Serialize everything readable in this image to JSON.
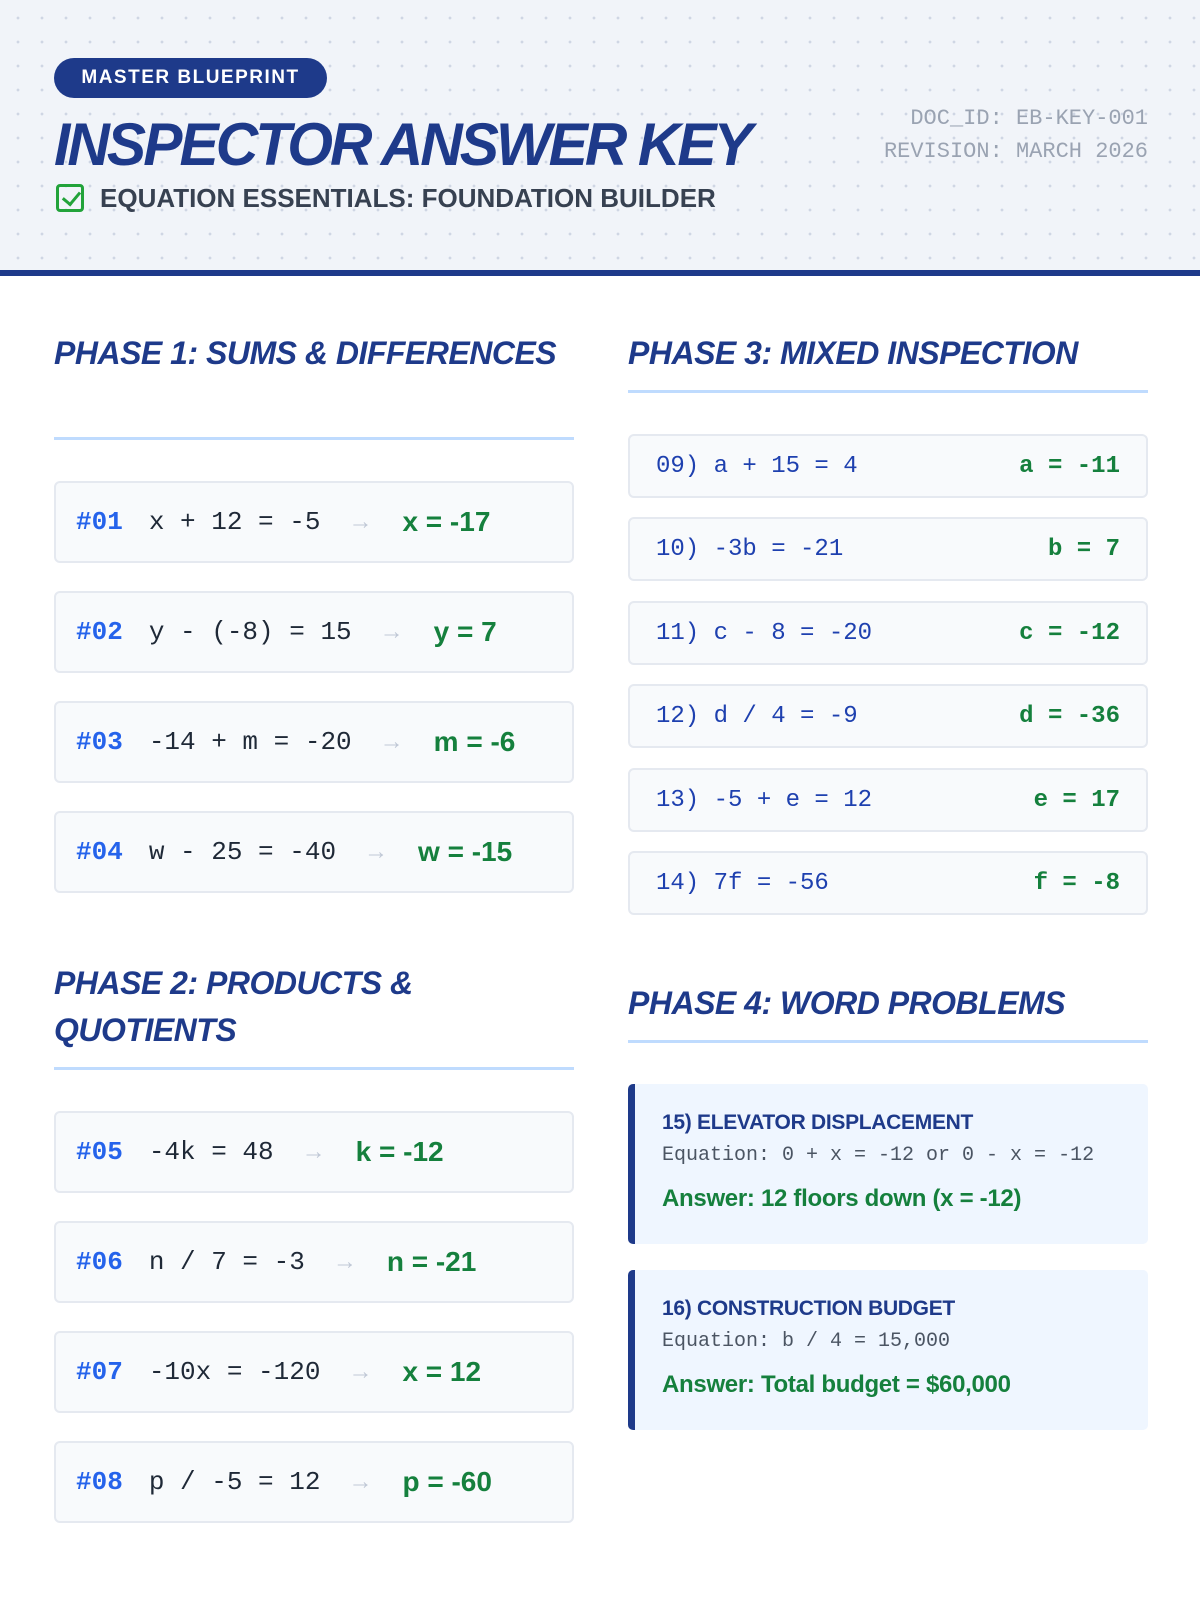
{
  "header": {
    "badge": "MASTER BLUEPRINT",
    "title": "INSPECTOR ANSWER KEY",
    "subtitle": "EQUATION ESSENTIALS: FOUNDATION BUILDER",
    "doc_id": "DOC_ID: EB-KEY-001",
    "revision": "REVISION: MARCH 2026"
  },
  "phase1": {
    "title": "PHASE 1: SUMS & DIFFERENCES",
    "items": [
      {
        "num": "#01",
        "eq": "x + 12 = -5",
        "ans": "x = -17"
      },
      {
        "num": "#02",
        "eq": "y - (-8) = 15",
        "ans": "y = 7"
      },
      {
        "num": "#03",
        "eq": "-14 + m = -20",
        "ans": "m = -6"
      },
      {
        "num": "#04",
        "eq": "w - 25 = -40",
        "ans": "w = -15"
      }
    ]
  },
  "phase2": {
    "title": "PHASE 2: PRODUCTS & QUOTIENTS",
    "items": [
      {
        "num": "#05",
        "eq": "-4k = 48",
        "ans": "k = -12"
      },
      {
        "num": "#06",
        "eq": "n / 7 = -3",
        "ans": "n = -21"
      },
      {
        "num": "#07",
        "eq": "-10x = -120",
        "ans": "x = 12"
      },
      {
        "num": "#08",
        "eq": "p / -5 = 12",
        "ans": "p = -60"
      }
    ]
  },
  "phase3": {
    "title": "PHASE 3: MIXED INSPECTION",
    "items": [
      {
        "q": "09) a + 15 = 4",
        "ans": "a = -11"
      },
      {
        "q": "10) -3b = -21",
        "ans": "b = 7"
      },
      {
        "q": "11) c - 8 = -20",
        "ans": "c = -12"
      },
      {
        "q": "12) d / 4 = -9",
        "ans": "d = -36"
      },
      {
        "q": "13) -5 + e = 12",
        "ans": "e = 17"
      },
      {
        "q": "14) 7f = -56",
        "ans": "f = -8"
      }
    ]
  },
  "phase4": {
    "title": "PHASE 4: WORD PROBLEMS",
    "items": [
      {
        "title": "15) ELEVATOR DISPLACEMENT",
        "eq": "Equation: 0 + x = -12 or 0 - x = -12",
        "ans": "Answer: 12 floors down (x = -12)"
      },
      {
        "title": "16) CONSTRUCTION BUDGET",
        "eq": "Equation: b / 4 = 15,000",
        "ans": "Answer: Total budget = $60,000"
      }
    ]
  },
  "icons": {
    "arrow": "arrow-right-icon",
    "check": "checkbox-checked-icon"
  },
  "colors": {
    "brand": "#1e3a8a",
    "accent": "#2563eb",
    "answer": "#15803d",
    "check": "#22a33a"
  }
}
